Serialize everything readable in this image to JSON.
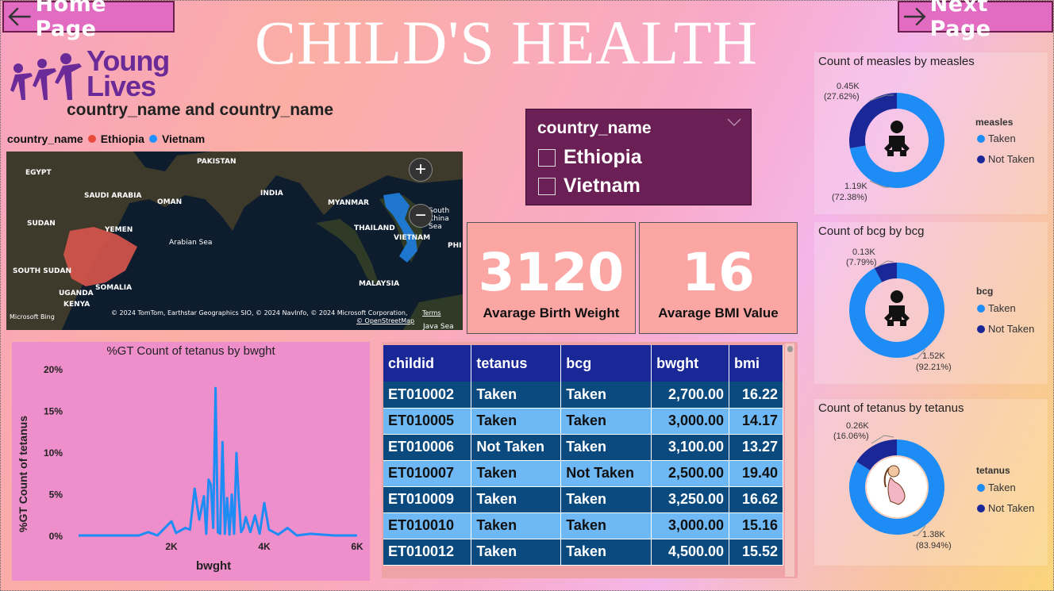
{
  "nav": {
    "home_label": "Home Page",
    "next_label": "Next Page"
  },
  "title": "CHILD'S HEALTH",
  "logo": {
    "line1": "Young",
    "line2": "Lives"
  },
  "map": {
    "title": "country_name and country_name",
    "legend_title": "country_name",
    "legend": [
      {
        "label": "Ethiopia",
        "color": "#e84a3c"
      },
      {
        "label": "Vietnam",
        "color": "#1e90ff"
      }
    ],
    "places": [
      "EGYPT",
      "PAKISTAN",
      "SAUDI ARABIA",
      "INDIA",
      "OMAN",
      "MYANMAR",
      "SUDAN",
      "YEMEN",
      "THAILAND",
      "VIETNAM",
      "Arabian Sea",
      "SOUTH SUDAN",
      "SOMALIA",
      "MALAYSIA",
      "UGANDA",
      "KENYA",
      "South China Sea",
      "PHI",
      "Java Sea"
    ],
    "attribution": "© 2024 TomTom, Earthstar Geographics SIO, © 2024 NavInfo, © 2024 Microsoft Corporation,",
    "terms": "Terms",
    "osm": "© OpenStreetMap",
    "bing": "Microsoft Bing",
    "zoom_in": "+",
    "zoom_out": "−"
  },
  "slicer": {
    "title": "country_name",
    "options": [
      "Ethiopia",
      "Vietnam"
    ]
  },
  "cards": [
    {
      "value": "3120",
      "label": "Avarage Birth Weight"
    },
    {
      "value": "16",
      "label": "Avarage BMI Value"
    }
  ],
  "donuts": [
    {
      "title": "Count of measles by measles",
      "legend_title": "measles",
      "legend": [
        "Taken",
        "Not Taken"
      ],
      "taken_label": "1.19K",
      "taken_pct": "(72.38%)",
      "not_label": "0.45K",
      "not_pct": "(27.62%)",
      "taken_fraction": 0.7238,
      "icon": "baby-icon"
    },
    {
      "title": "Count of bcg by bcg",
      "legend_title": "bcg",
      "legend": [
        "Taken",
        "Not Taken"
      ],
      "taken_label": "1.52K",
      "taken_pct": "(92.21%)",
      "not_label": "0.13K",
      "not_pct": "(7.79%)",
      "taken_fraction": 0.9221,
      "icon": "baby-icon"
    },
    {
      "title": "Count of tetanus by tetanus",
      "legend_title": "tetanus",
      "legend": [
        "Taken",
        "Not Taken"
      ],
      "taken_label": "1.38K",
      "taken_pct": "(83.94%)",
      "not_label": "0.26K",
      "not_pct": "(16.06%)",
      "taken_fraction": 0.8394,
      "icon": "pregnant-woman-icon"
    }
  ],
  "colors": {
    "taken": "#1e8cf5",
    "not_taken": "#1a2897"
  },
  "chart_data": {
    "type": "line",
    "title": "%GT Count of tetanus by bwght",
    "xlabel": "bwght",
    "ylabel": "%GT Count of tetanus",
    "xlim": [
      0,
      6000
    ],
    "ylim": [
      0,
      20
    ],
    "x_ticks": [
      "2K",
      "4K",
      "6K"
    ],
    "x_tick_values": [
      2000,
      4000,
      6000
    ],
    "y_ticks": [
      "0%",
      "5%",
      "10%",
      "15%",
      "20%"
    ],
    "y_tick_values": [
      0,
      5,
      10,
      15,
      20
    ],
    "series": [
      {
        "x": [
          0,
          1300,
          1500,
          1700,
          2000,
          2100,
          2300,
          2400,
          2500,
          2600,
          2700,
          2750,
          2800,
          2850,
          2900,
          2950,
          3000,
          3050,
          3100,
          3150,
          3200,
          3250,
          3300,
          3350,
          3400,
          3450,
          3500,
          3550,
          3600,
          3700,
          3800,
          3900,
          4000,
          4100,
          4300,
          4500,
          4700,
          5000,
          5500,
          6000
        ],
        "values": [
          0.1,
          0.1,
          0.5,
          0.1,
          1.8,
          0.4,
          1.0,
          0.8,
          5.7,
          2.0,
          4.8,
          0.3,
          6.8,
          6.2,
          1.0,
          17.8,
          0.5,
          0.3,
          11.3,
          0.3,
          4.6,
          0.2,
          5.0,
          0.3,
          10.0,
          4.5,
          0.5,
          1.0,
          2.3,
          0.5,
          2.5,
          0.3,
          4.0,
          0.8,
          0.2,
          1.0,
          0.1,
          0.3,
          0.1,
          0.1
        ]
      }
    ]
  },
  "table": {
    "headers": [
      "childid",
      "tetanus",
      "bcg",
      "bwght",
      "bmi"
    ],
    "rows": [
      [
        "ET010002",
        "Taken",
        "Taken",
        "2,700.00",
        "16.22"
      ],
      [
        "ET010005",
        "Taken",
        "Taken",
        "3,000.00",
        "14.17"
      ],
      [
        "ET010006",
        "Not Taken",
        "Taken",
        "3,100.00",
        "13.27"
      ],
      [
        "ET010007",
        "Taken",
        "Not Taken",
        "2,500.00",
        "19.40"
      ],
      [
        "ET010009",
        "Taken",
        "Taken",
        "3,250.00",
        "16.62"
      ],
      [
        "ET010010",
        "Taken",
        "Taken",
        "3,000.00",
        "15.16"
      ],
      [
        "ET010012",
        "Taken",
        "Taken",
        "4,500.00",
        "15.52"
      ]
    ]
  }
}
